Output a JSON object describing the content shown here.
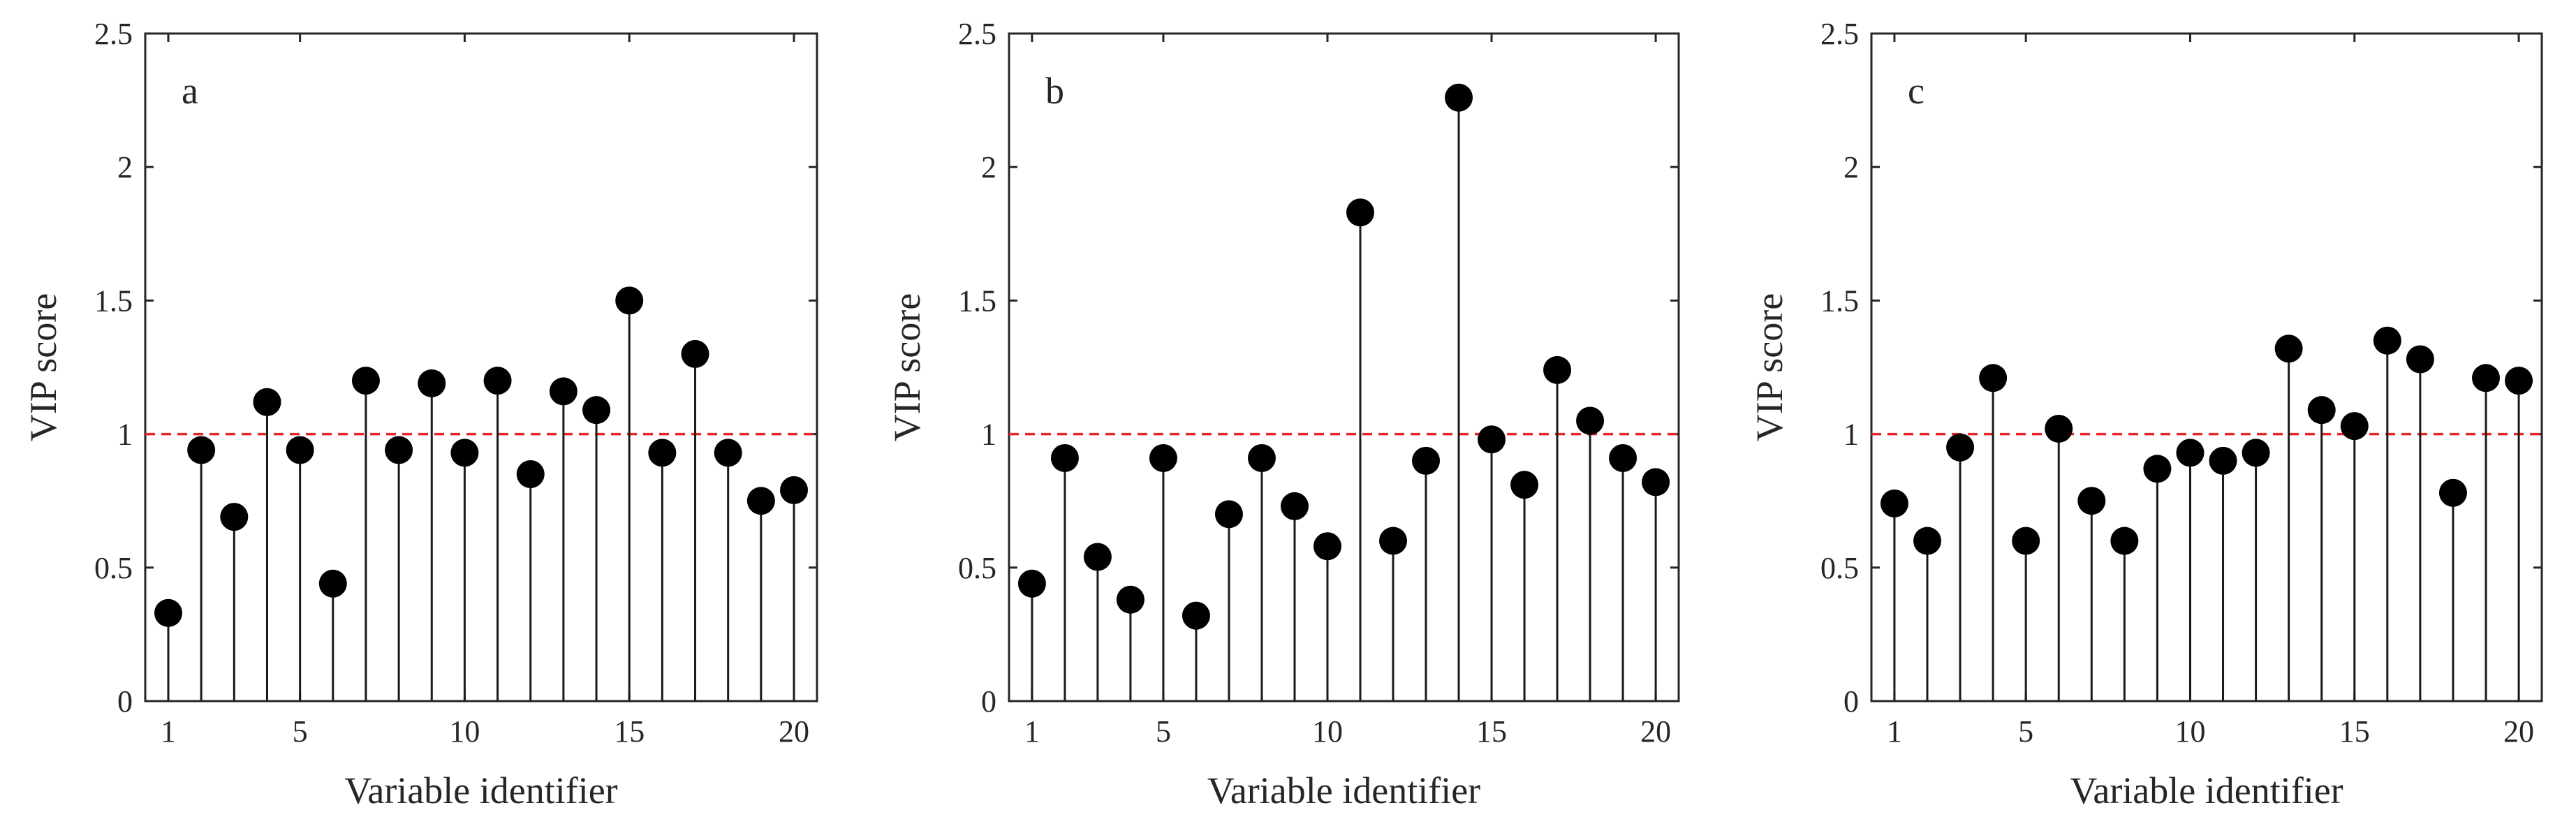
{
  "chart_data": [
    {
      "type": "stem",
      "panel_label": "a",
      "xlabel": "Variable identifier",
      "ylabel": "VIP score",
      "x": [
        1,
        2,
        3,
        4,
        5,
        6,
        7,
        8,
        9,
        10,
        11,
        12,
        13,
        14,
        15,
        16,
        17,
        18,
        19,
        20
      ],
      "values": [
        0.33,
        0.94,
        0.69,
        1.12,
        0.94,
        0.44,
        1.2,
        0.94,
        1.19,
        0.93,
        1.2,
        0.85,
        1.16,
        1.09,
        1.5,
        0.93,
        1.3,
        0.93,
        0.75,
        0.79
      ],
      "xticks": [
        1,
        5,
        10,
        15,
        20
      ],
      "yticks": [
        0,
        0.5,
        1,
        1.5,
        2,
        2.5
      ],
      "ytick_labels": [
        "0",
        "0.5",
        "1",
        "1.5",
        "2",
        "2.5"
      ],
      "xlim": [
        0.3,
        20.7
      ],
      "ylim": [
        0,
        2.5
      ],
      "reference_line": {
        "y": 1,
        "style": "dashed",
        "color": "#e8262a"
      },
      "marker_color": "#000000",
      "grid": false
    },
    {
      "type": "stem",
      "panel_label": "b",
      "xlabel": "Variable identifier",
      "ylabel": "VIP score",
      "x": [
        1,
        2,
        3,
        4,
        5,
        6,
        7,
        8,
        9,
        10,
        11,
        12,
        13,
        14,
        15,
        16,
        17,
        18,
        19,
        20
      ],
      "values": [
        0.44,
        0.91,
        0.54,
        0.38,
        0.91,
        0.32,
        0.7,
        0.91,
        0.73,
        0.58,
        1.83,
        0.6,
        0.9,
        2.26,
        0.98,
        0.81,
        1.24,
        1.05,
        0.91,
        0.82
      ],
      "xticks": [
        1,
        5,
        10,
        15,
        20
      ],
      "yticks": [
        0,
        0.5,
        1,
        1.5,
        2,
        2.5
      ],
      "ytick_labels": [
        "0",
        "0.5",
        "1",
        "1.5",
        "2",
        "2.5"
      ],
      "xlim": [
        0.3,
        20.7
      ],
      "ylim": [
        0,
        2.5
      ],
      "reference_line": {
        "y": 1,
        "style": "dashed",
        "color": "#e8262a"
      },
      "marker_color": "#000000",
      "grid": false
    },
    {
      "type": "stem",
      "panel_label": "c",
      "xlabel": "Variable identifier",
      "ylabel": "VIP score",
      "x": [
        1,
        2,
        3,
        4,
        5,
        6,
        7,
        8,
        9,
        10,
        11,
        12,
        13,
        14,
        15,
        16,
        17,
        18,
        19,
        20
      ],
      "values": [
        0.74,
        0.6,
        0.95,
        1.21,
        0.6,
        1.02,
        0.75,
        0.6,
        0.87,
        0.93,
        0.9,
        0.93,
        1.32,
        1.09,
        1.03,
        1.35,
        1.28,
        0.78,
        1.21,
        1.2
      ],
      "xticks": [
        1,
        5,
        10,
        15,
        20
      ],
      "yticks": [
        0,
        0.5,
        1,
        1.5,
        2,
        2.5
      ],
      "ytick_labels": [
        "0",
        "0.5",
        "1",
        "1.5",
        "2",
        "2.5"
      ],
      "xlim": [
        0.3,
        20.7
      ],
      "ylim": [
        0,
        2.5
      ],
      "reference_line": {
        "y": 1,
        "style": "dashed",
        "color": "#e8262a"
      },
      "marker_color": "#000000",
      "grid": false
    }
  ]
}
